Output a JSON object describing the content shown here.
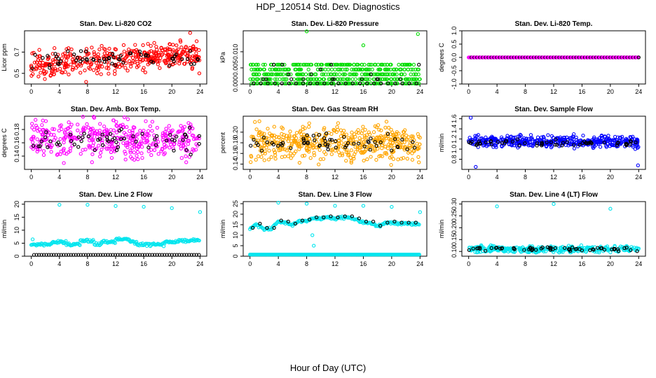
{
  "figure_title": "HDP_120514  Std. Dev. Diagnostics",
  "x_axis_label": "Hour of Day (UTC)",
  "colors": {
    "red": "#ff0000",
    "green": "#00dd00",
    "magenta": "#ff00ff",
    "orange": "#ffa500",
    "blue": "#0000ff",
    "cyan": "#00e5ee",
    "black": "#000000"
  },
  "chart_data": [
    {
      "id": "co2",
      "type": "scatter",
      "title": "Stan. Dev. Li-820 CO2",
      "ylabel": "Licor ppm",
      "xlim": [
        0,
        24
      ],
      "xticks": [
        0,
        4,
        8,
        12,
        16,
        20,
        24
      ],
      "ylim": [
        0.4,
        0.9
      ],
      "yticks": [
        0.5,
        0.7
      ],
      "color": "#ff0000",
      "series": [
        {
          "name": "band",
          "mean": 0.63,
          "spread": 0.1,
          "trend": 0.003,
          "n": 420
        },
        {
          "name": "hourly",
          "mean": 0.63,
          "spread": 0.08,
          "n": 60
        }
      ],
      "outliers": [
        [
          7.8,
          0.42
        ],
        [
          22.6,
          0.88
        ],
        [
          23.9,
          0.5
        ]
      ]
    },
    {
      "id": "pressure",
      "type": "scatter",
      "title": "Stan. Dev. Li-820 Pressure",
      "ylabel": "kPa",
      "xlim": [
        0,
        24
      ],
      "xticks": [
        0,
        4,
        8,
        12,
        16,
        20,
        24
      ],
      "ylim": [
        0,
        0.0165
      ],
      "yticks": [
        0.0,
        0.005,
        0.01
      ],
      "color": "#00dd00",
      "levels": [
        0.0,
        0.0015,
        0.003,
        0.0045,
        0.006
      ],
      "outliers": [
        [
          8,
          0.0165
        ],
        [
          16,
          0.012
        ],
        [
          23.7,
          0.0155
        ]
      ]
    },
    {
      "id": "temp",
      "type": "scatter",
      "title": "Stan. Dev. Li-820 Temp.",
      "ylabel": "degrees C",
      "xlim": [
        0,
        24
      ],
      "xticks": [
        0,
        4,
        8,
        12,
        16,
        20,
        24
      ],
      "ylim": [
        -1.0,
        1.0
      ],
      "yticks": [
        -1.0,
        -0.5,
        0.0,
        0.5,
        1.0
      ],
      "color": "#ff00ff",
      "constant": 0.0
    },
    {
      "id": "ambbox",
      "type": "scatter",
      "title": "Stan. Dev. Amb. Box Temp.",
      "ylabel": "degrees C",
      "xlim": [
        0,
        24
      ],
      "xticks": [
        0,
        4,
        8,
        12,
        16,
        20,
        24
      ],
      "ylim": [
        0.12,
        0.2
      ],
      "yticks": [
        0.14,
        0.16,
        0.18
      ],
      "color": "#ff00ff",
      "series": [
        {
          "name": "band",
          "mean": 0.165,
          "spread": 0.025,
          "n": 420
        },
        {
          "name": "hourly",
          "mean": 0.165,
          "spread": 0.015,
          "n": 60
        }
      ]
    },
    {
      "id": "rh",
      "type": "scatter",
      "title": "Stan. Dev. Gas Stream RH",
      "ylabel": "percent",
      "xlim": [
        0,
        24
      ],
      "xticks": [
        0,
        4,
        8,
        12,
        16,
        20,
        24
      ],
      "ylim": [
        0.13,
        0.23
      ],
      "yticks": [
        0.14,
        0.16,
        0.18,
        0.2
      ],
      "color": "#ffa500",
      "series": [
        {
          "name": "band",
          "mean": 0.18,
          "spread": 0.03,
          "n": 480
        },
        {
          "name": "hourly",
          "mean": 0.18,
          "spread": 0.015,
          "n": 60
        }
      ]
    },
    {
      "id": "sample",
      "type": "scatter",
      "title": "Stan. Dev. Sample Flow",
      "ylabel": "ml/min",
      "xlim": [
        0,
        24
      ],
      "xticks": [
        0,
        4,
        8,
        12,
        16,
        20,
        24
      ],
      "ylim": [
        0.6,
        1.65
      ],
      "yticks": [
        0.8,
        1.0,
        1.2,
        1.4,
        1.6
      ],
      "color": "#0000ff",
      "series": [
        {
          "name": "band",
          "mean": 1.15,
          "spread": 0.1,
          "n": 440
        },
        {
          "name": "hourly",
          "mean": 1.12,
          "spread": 0.06,
          "n": 60
        }
      ],
      "outliers": [
        [
          0.3,
          1.62
        ],
        [
          1.0,
          0.65
        ],
        [
          23.9,
          0.68
        ]
      ]
    },
    {
      "id": "line2",
      "type": "scatter",
      "title": "Stan. Dev. Line 2 Flow",
      "ylabel": "ml/min",
      "xlim": [
        0,
        24
      ],
      "xticks": [
        0,
        4,
        8,
        12,
        16,
        20,
        24
      ],
      "ylim": [
        0,
        21
      ],
      "yticks": [
        0,
        5,
        10,
        15,
        20
      ],
      "color": "#00e5ee",
      "series": [
        {
          "name": "cyan_band",
          "segments": [
            [
              0,
              3,
              4.5
            ],
            [
              3,
              5,
              5.5
            ],
            [
              5,
              7,
              4.5
            ],
            [
              7,
              9,
              6
            ],
            [
              9,
              10,
              4.5
            ],
            [
              10,
              12,
              5.5
            ],
            [
              12,
              14,
              6.5
            ],
            [
              14,
              15,
              5.5
            ],
            [
              15,
              19,
              4.5
            ],
            [
              19,
              21,
              5.5
            ],
            [
              21,
              24,
              6
            ]
          ]
        },
        {
          "name": "baseline",
          "value": 0.5
        }
      ],
      "outliers": [
        [
          0.2,
          6.5
        ],
        [
          4,
          19.8
        ],
        [
          8,
          19.8
        ],
        [
          12,
          19.3
        ],
        [
          16,
          19
        ],
        [
          20,
          18.5
        ],
        [
          24,
          17
        ]
      ]
    },
    {
      "id": "line3",
      "type": "scatter",
      "title": "Stan. Dev. Line 3 Flow",
      "ylabel": "ml/min",
      "xlim": [
        0,
        24
      ],
      "xticks": [
        0,
        4,
        8,
        12,
        16,
        20,
        24
      ],
      "ylim": [
        0,
        26
      ],
      "yticks": [
        0,
        5,
        10,
        15,
        20,
        25
      ],
      "color": "#00e5ee",
      "series": [
        {
          "name": "upper",
          "x": [
            0,
            1,
            2,
            3,
            4,
            5,
            6,
            7,
            8,
            9,
            10,
            11,
            12,
            13,
            14,
            15,
            16,
            17,
            18,
            19,
            20,
            21,
            22,
            23,
            24
          ],
          "y": [
            13,
            15,
            13,
            13,
            16.5,
            16,
            15,
            16.5,
            17,
            18,
            18,
            18.5,
            18,
            18.5,
            18.5,
            17.5,
            16,
            16,
            14,
            15.5,
            16,
            15.5,
            15.5,
            15.5,
            15.5
          ]
        },
        {
          "name": "baseline",
          "value": 0.8
        }
      ],
      "outliers": [
        [
          4,
          25.5
        ],
        [
          8,
          25
        ],
        [
          8.8,
          10
        ],
        [
          9,
          5
        ],
        [
          12,
          24
        ],
        [
          16,
          24
        ],
        [
          20,
          23.5
        ],
        [
          24,
          21
        ]
      ]
    },
    {
      "id": "line4",
      "type": "scatter",
      "title": "Stan. Dev. Line 4 (LT) Flow",
      "ylabel": "ml/min",
      "xlim": [
        0,
        24
      ],
      "xticks": [
        0,
        4,
        8,
        12,
        16,
        20,
        24
      ],
      "ylim": [
        0.08,
        0.31
      ],
      "yticks": [
        0.1,
        0.15,
        0.2,
        0.25,
        0.3
      ],
      "color": "#00e5ee",
      "series": [
        {
          "name": "band",
          "mean": 0.11,
          "spread": 0.012,
          "n": 360
        },
        {
          "name": "hourly",
          "mean": 0.11,
          "spread": 0.008,
          "n": 60
        }
      ],
      "outliers": [
        [
          4,
          0.29
        ],
        [
          12,
          0.3
        ],
        [
          20,
          0.28
        ]
      ]
    }
  ]
}
